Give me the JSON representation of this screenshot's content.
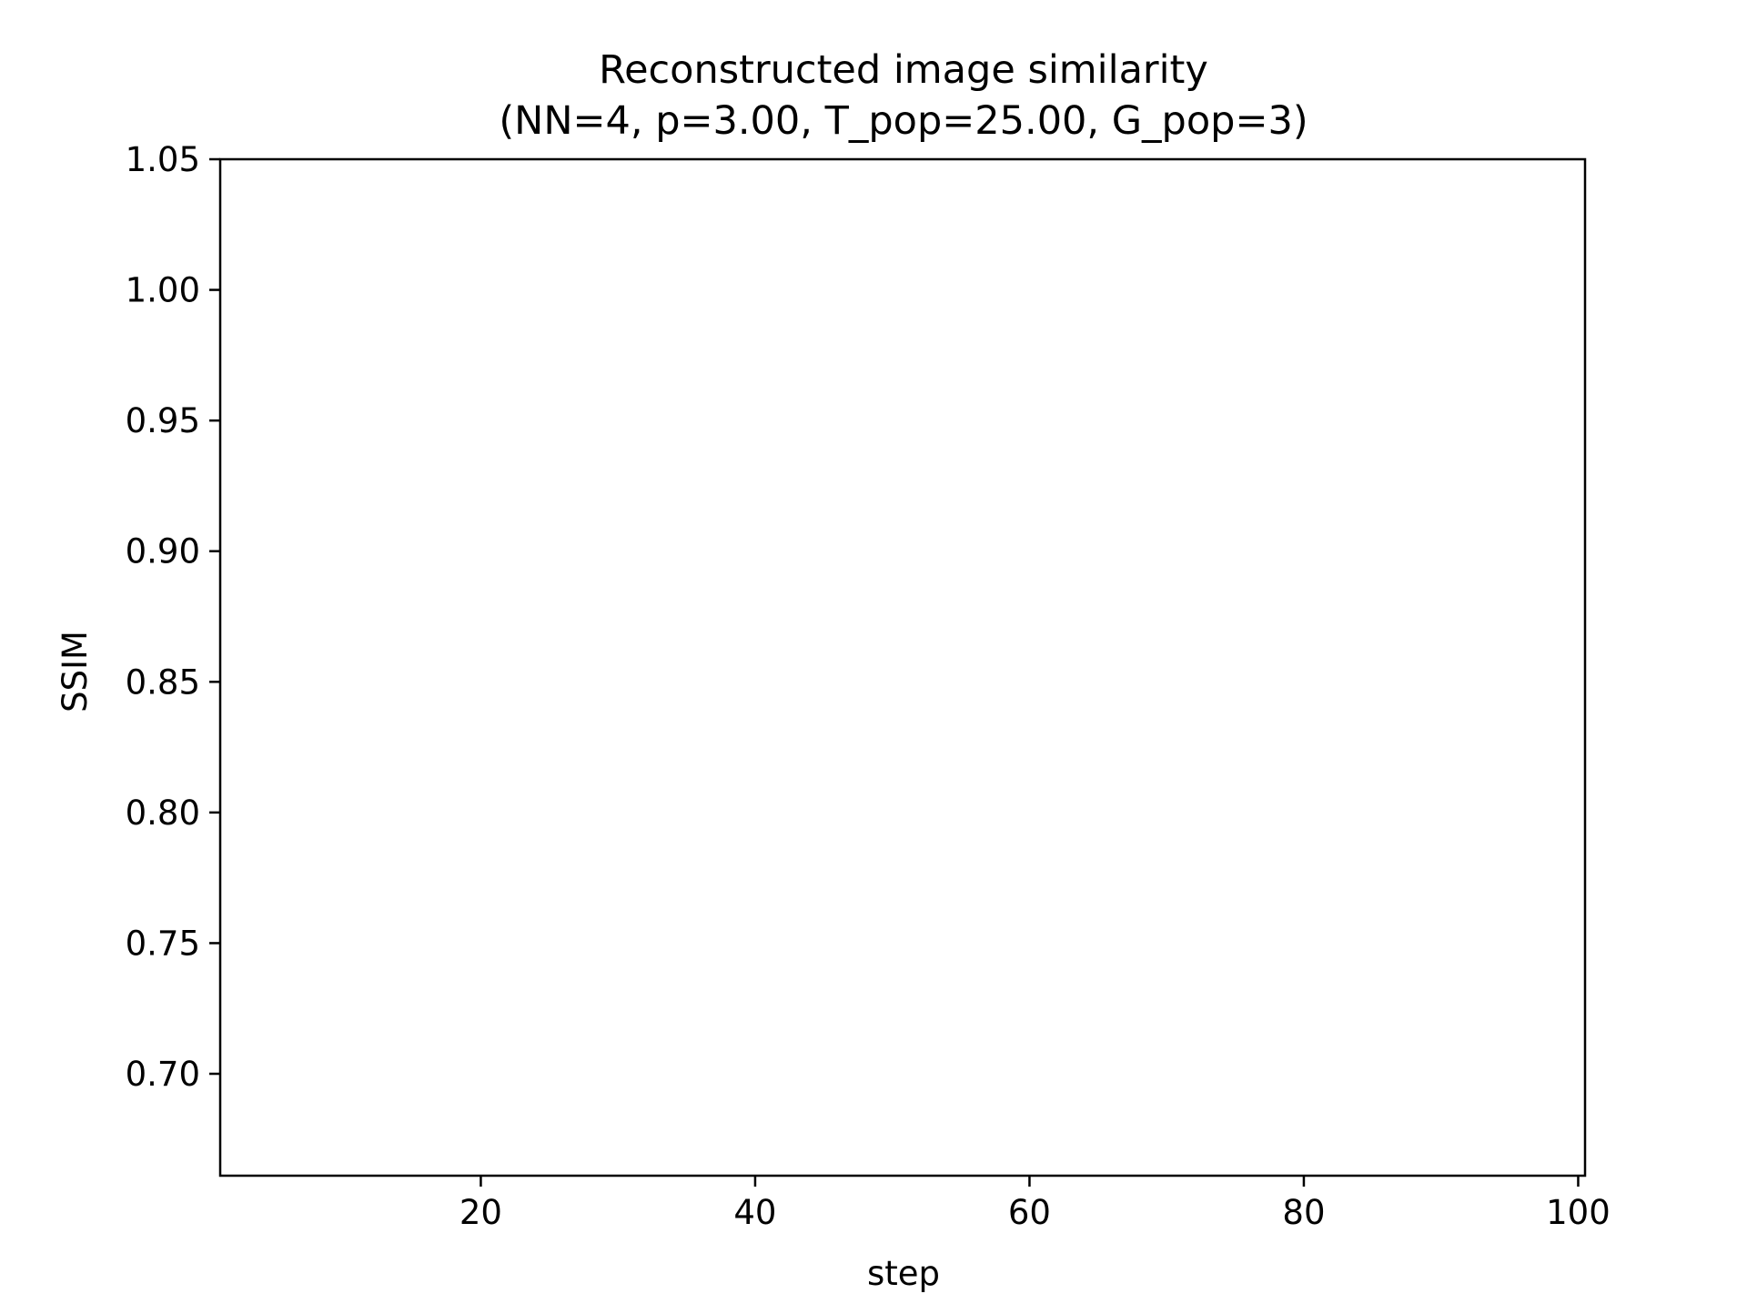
{
  "chart_data": {
    "type": "line",
    "title": "Reconstructed image similarity",
    "subtitle": "(NN=4, p=3.00, T_pop=25.00, G_pop=3)",
    "xlabel": "step",
    "ylabel": "SSIM",
    "xlim": [
      1,
      100.5
    ],
    "ylim": [
      0.661,
      1.05
    ],
    "xticks": [
      {
        "value": 20,
        "label": "20"
      },
      {
        "value": 40,
        "label": "40"
      },
      {
        "value": 60,
        "label": "60"
      },
      {
        "value": 80,
        "label": "80"
      },
      {
        "value": 100,
        "label": "100"
      }
    ],
    "yticks": [
      {
        "value": 0.7,
        "label": "0.70"
      },
      {
        "value": 0.75,
        "label": "0.75"
      },
      {
        "value": 0.8,
        "label": "0.80"
      },
      {
        "value": 0.85,
        "label": "0.85"
      },
      {
        "value": 0.9,
        "label": "0.90"
      },
      {
        "value": 0.95,
        "label": "0.95"
      },
      {
        "value": 1.0,
        "label": "1.00"
      },
      {
        "value": 1.05,
        "label": "1.05"
      }
    ],
    "series": [],
    "grid": false,
    "legend": "none"
  }
}
